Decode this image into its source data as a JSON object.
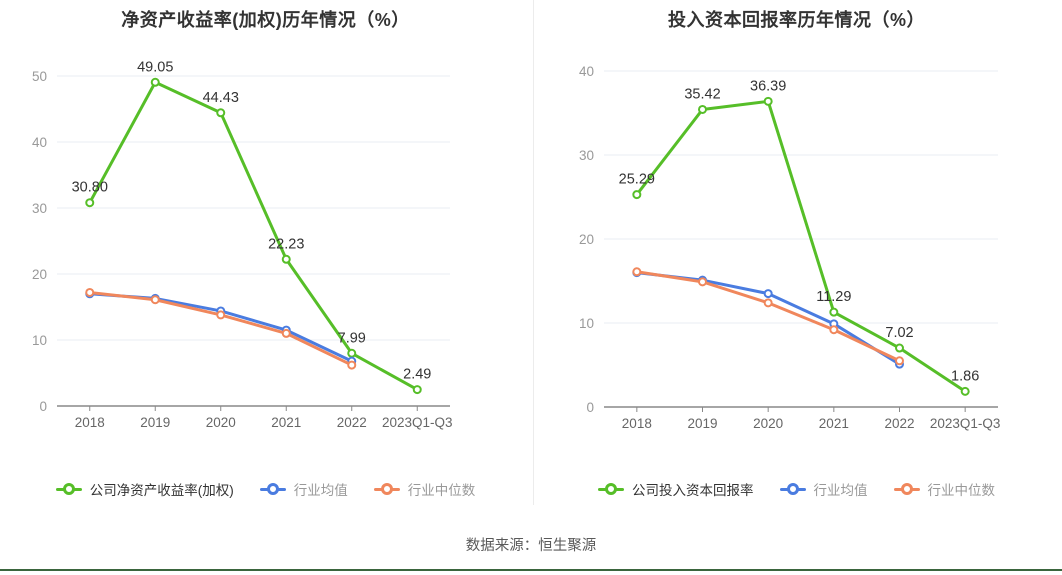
{
  "page": {
    "source_note": "数据来源：恒生聚源",
    "divider_color": "#ececec",
    "footer_rule_color": "#3a653d"
  },
  "style": {
    "grid_color": "#e9ecf3",
    "axis_color": "#888888",
    "ytick_color": "#999999",
    "xtick_color": "#666666",
    "data_label_color": "#333333",
    "title_color": "#333333"
  },
  "chart_data": [
    {
      "type": "line",
      "title": "净资产收益率(加权)历年情况（%）",
      "categories": [
        "2018",
        "2019",
        "2020",
        "2021",
        "2022",
        "2023Q1-Q3"
      ],
      "ylim": [
        0,
        50
      ],
      "yticks": [
        0,
        10,
        20,
        30,
        40,
        50
      ],
      "grid": true,
      "legend_position": "bottom",
      "series": [
        {
          "name": "公司净资产收益率(加权)",
          "color": "#56be28",
          "values": [
            30.8,
            49.05,
            44.43,
            22.23,
            7.99,
            2.49
          ],
          "point_labels": [
            "30.80",
            "49.05",
            "44.43",
            "22.23",
            "7.99",
            "2.49"
          ]
        },
        {
          "name": "行业均值",
          "color": "#4a7ce0",
          "values": [
            17.0,
            16.3,
            14.4,
            11.5,
            6.8,
            null
          ]
        },
        {
          "name": "行业中位数",
          "color": "#f0875c",
          "values": [
            17.2,
            16.1,
            13.8,
            11.0,
            6.2,
            null
          ]
        }
      ]
    },
    {
      "type": "line",
      "title": "投入资本回报率历年情况（%）",
      "categories": [
        "2018",
        "2019",
        "2020",
        "2021",
        "2022",
        "2023Q1-Q3"
      ],
      "ylim": [
        0,
        40
      ],
      "yticks": [
        0,
        10,
        20,
        30,
        40
      ],
      "grid": true,
      "legend_position": "bottom",
      "series": [
        {
          "name": "公司投入资本回报率",
          "color": "#56be28",
          "values": [
            25.29,
            35.42,
            36.39,
            11.29,
            7.02,
            1.86
          ],
          "point_labels": [
            "25.29",
            "35.42",
            "36.39",
            "11.29",
            "7.02",
            "1.86"
          ]
        },
        {
          "name": "行业均值",
          "color": "#4a7ce0",
          "values": [
            16.0,
            15.1,
            13.5,
            9.9,
            5.1,
            null
          ]
        },
        {
          "name": "行业中位数",
          "color": "#f0875c",
          "values": [
            16.1,
            14.9,
            12.4,
            9.2,
            5.5,
            null
          ]
        }
      ]
    }
  ]
}
